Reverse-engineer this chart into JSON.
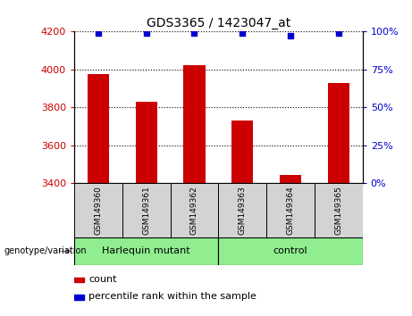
{
  "title": "GDS3365 / 1423047_at",
  "samples": [
    "GSM149360",
    "GSM149361",
    "GSM149362",
    "GSM149363",
    "GSM149364",
    "GSM149365"
  ],
  "counts": [
    3975,
    3830,
    4025,
    3730,
    3445,
    3930
  ],
  "percentile_ranks": [
    99,
    99,
    99,
    99,
    97,
    99
  ],
  "ylim_left": [
    3400,
    4200
  ],
  "ylim_right": [
    0,
    100
  ],
  "yticks_left": [
    3400,
    3600,
    3800,
    4000,
    4200
  ],
  "yticks_right": [
    0,
    25,
    50,
    75,
    100
  ],
  "bar_color": "#cc0000",
  "dot_color": "#0000cc",
  "bar_base": 3400,
  "group_ranges": [
    [
      0,
      2,
      "Harlequin mutant"
    ],
    [
      3,
      5,
      "control"
    ]
  ],
  "group_label": "genotype/variation",
  "legend_count_label": "count",
  "legend_percentile_label": "percentile rank within the sample",
  "tick_box_color": "#d3d3d3",
  "group_box_color": "#90ee90",
  "left_tick_color": "#cc0000",
  "right_tick_color": "#0000cc",
  "bar_width": 0.45
}
